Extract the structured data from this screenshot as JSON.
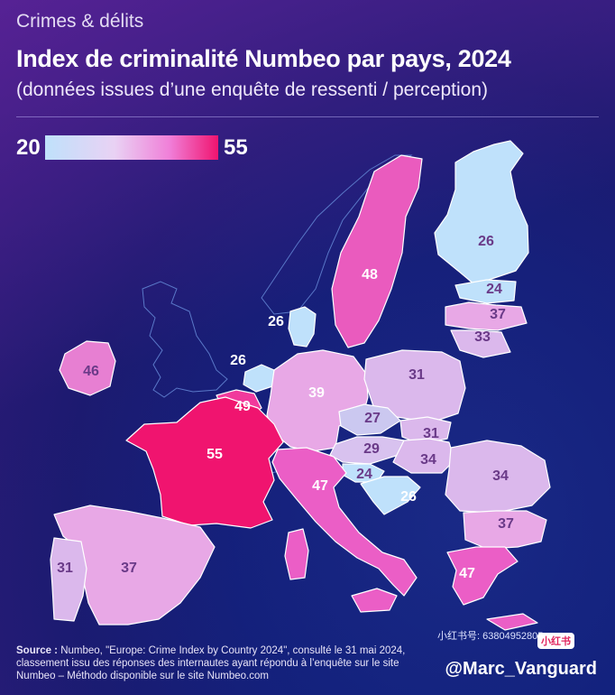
{
  "header": {
    "kicker": "Crimes & délits",
    "title": "Index de criminalité Numbeo par pays, 2024",
    "subtitle": "(données issues d’une enquête de ressenti / perception)"
  },
  "legend": {
    "min": "20",
    "max": "55",
    "colors": [
      "#bfe1fb",
      "#f0146f"
    ]
  },
  "countries": [
    {
      "name": "Finland",
      "value": "26"
    },
    {
      "name": "Sweden",
      "value": "48"
    },
    {
      "name": "Estonia",
      "value": "24"
    },
    {
      "name": "Latvia",
      "value": "37"
    },
    {
      "name": "Lithuania",
      "value": "33"
    },
    {
      "name": "Denmark",
      "value": "26"
    },
    {
      "name": "Netherlands",
      "value": "26"
    },
    {
      "name": "Ireland",
      "value": "46"
    },
    {
      "name": "Belgium",
      "value": "49"
    },
    {
      "name": "Germany",
      "value": "39"
    },
    {
      "name": "Poland",
      "value": "31"
    },
    {
      "name": "Czechia",
      "value": "27"
    },
    {
      "name": "Slovakia",
      "value": "31"
    },
    {
      "name": "France",
      "value": "55"
    },
    {
      "name": "Austria",
      "value": "29"
    },
    {
      "name": "Hungary",
      "value": "34"
    },
    {
      "name": "Slovenia",
      "value": "24"
    },
    {
      "name": "Croatia",
      "value": "26"
    },
    {
      "name": "Romania",
      "value": "34"
    },
    {
      "name": "Italy",
      "value": "47"
    },
    {
      "name": "Bulgaria",
      "value": "37"
    },
    {
      "name": "Greece",
      "value": "47"
    },
    {
      "name": "Spain",
      "value": "37"
    },
    {
      "name": "Portugal",
      "value": "31"
    }
  ],
  "source": {
    "label": "Source :",
    "text": "Numbeo, \"Europe: Crime Index by Country 2024\", consulté le 31 mai 2024, classement issu des réponses des internautes ayant répondu à l’enquête sur le site Numbeo – Méthodo disponible sur le site Numbeo.com"
  },
  "credit": {
    "handle": "@Marc_Vanguard",
    "watermark": "小红书号: 63804952805",
    "badge": "小红书"
  }
}
